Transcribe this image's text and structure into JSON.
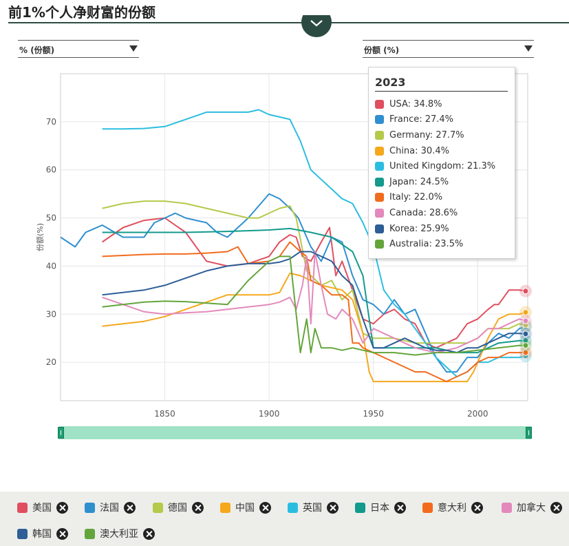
{
  "page": {
    "title": "前1%个人净财富的份额"
  },
  "controls": {
    "unit_select": "% (份额)",
    "metric_select": "份额 (%)"
  },
  "tooltip": {
    "year": "2023",
    "rows": [
      {
        "text": "USA: 34.8%",
        "color": "#e04f5f"
      },
      {
        "text": "France: 27.4%",
        "color": "#2f8fcf"
      },
      {
        "text": "Germany: 27.7%",
        "color": "#b5c94a"
      },
      {
        "text": "China: 30.4%",
        "color": "#f5a81c"
      },
      {
        "text": "United Kingdom: 21.3%",
        "color": "#2bbde0"
      },
      {
        "text": "Japan: 24.5%",
        "color": "#139a8c"
      },
      {
        "text": "Italy: 22.0%",
        "color": "#f26b1d"
      },
      {
        "text": "Canada: 28.6%",
        "color": "#e389bb"
      },
      {
        "text": "Korea: 25.9%",
        "color": "#2d5e96"
      },
      {
        "text": "Australia: 23.5%",
        "color": "#63a53a"
      }
    ]
  },
  "legend": [
    {
      "label": "美国",
      "color": "#e04f5f"
    },
    {
      "label": "法国",
      "color": "#2f8fcf"
    },
    {
      "label": "德国",
      "color": "#b5c94a"
    },
    {
      "label": "中国",
      "color": "#f5a81c"
    },
    {
      "label": "英国",
      "color": "#2bbde0"
    },
    {
      "label": "日本",
      "color": "#139a8c"
    },
    {
      "label": "意大利",
      "color": "#f26b1d"
    },
    {
      "label": "加拿大",
      "color": "#e389bb"
    },
    {
      "label": "韩国",
      "color": "#2d5e96"
    },
    {
      "label": "澳大利亚",
      "color": "#63a53a"
    }
  ],
  "chart_data": {
    "type": "line",
    "ylabel": "份额(%)",
    "xlim": [
      1800,
      2024
    ],
    "ylim": [
      12,
      80
    ],
    "xticks": [
      1850,
      1900,
      1950,
      2000
    ],
    "yticks": [
      20,
      30,
      40,
      50,
      60,
      70
    ],
    "grid": true,
    "series": [
      {
        "name": "USA",
        "color": "#e04f5f",
        "x": [
          1820,
          1830,
          1840,
          1850,
          1860,
          1870,
          1880,
          1890,
          1900,
          1905,
          1910,
          1913,
          1916,
          1920,
          1925,
          1929,
          1932,
          1935,
          1940,
          1945,
          1950,
          1955,
          1960,
          1965,
          1970,
          1975,
          1980,
          1985,
          1990,
          1995,
          2000,
          2005,
          2008,
          2010,
          2015,
          2020,
          2023
        ],
        "y": [
          45,
          48,
          49.5,
          50,
          47,
          41,
          40,
          40.5,
          42,
          45,
          46.5,
          46,
          42,
          41,
          45,
          48,
          38,
          41,
          35,
          29,
          28,
          30,
          31,
          29,
          28,
          24,
          23,
          24,
          25,
          28,
          29,
          31,
          32,
          32,
          35,
          35,
          34.8
        ]
      },
      {
        "name": "France",
        "color": "#2f8fcf",
        "x": [
          1800,
          1807,
          1812,
          1820,
          1830,
          1840,
          1845,
          1850,
          1855,
          1860,
          1870,
          1875,
          1880,
          1890,
          1900,
          1905,
          1910,
          1914,
          1920,
          1925,
          1930,
          1935,
          1940,
          1945,
          1950,
          1955,
          1960,
          1965,
          1970,
          1975,
          1980,
          1985,
          1990,
          1995,
          2000,
          2005,
          2010,
          2015,
          2020,
          2023
        ],
        "y": [
          46,
          44,
          47,
          48.5,
          46,
          46,
          49,
          50,
          51,
          50,
          49,
          47,
          46,
          50,
          55,
          54,
          52,
          50,
          44,
          41,
          46,
          45,
          38,
          33,
          32,
          30,
          33,
          30,
          31,
          26,
          21,
          18,
          18,
          21,
          21,
          24,
          26,
          25,
          27,
          27.4
        ]
      },
      {
        "name": "Germany",
        "color": "#b5c94a",
        "x": [
          1820,
          1830,
          1840,
          1850,
          1860,
          1870,
          1880,
          1890,
          1895,
          1900,
          1905,
          1910,
          1913,
          1918,
          1920,
          1925,
          1930,
          1935,
          1940,
          1945,
          1950,
          1960,
          1970,
          1975,
          1980,
          1990,
          1995,
          2000,
          2005,
          2010,
          2015,
          2020,
          2023
        ],
        "y": [
          52,
          53,
          53.5,
          53.5,
          53,
          52,
          51,
          50,
          50,
          51,
          52,
          52.5,
          50,
          39,
          38,
          36,
          37,
          33,
          35,
          26,
          25,
          25,
          24,
          24,
          24,
          24,
          24,
          25,
          27,
          27,
          27,
          28,
          27.7
        ]
      },
      {
        "name": "China",
        "color": "#f5a81c",
        "x": [
          1820,
          1830,
          1840,
          1850,
          1860,
          1870,
          1880,
          1890,
          1900,
          1905,
          1910,
          1915,
          1920,
          1925,
          1930,
          1935,
          1940,
          1945,
          1948,
          1950,
          1955,
          1960,
          1970,
          1978,
          1980,
          1990,
          1995,
          1998,
          2000,
          2005,
          2010,
          2015,
          2020,
          2023
        ],
        "y": [
          27.5,
          28,
          28.5,
          29.5,
          31,
          32.5,
          34,
          34,
          34,
          34.5,
          38.5,
          38,
          37,
          36,
          35.5,
          35,
          33,
          26,
          18,
          16,
          16,
          16,
          16,
          16,
          16,
          16,
          16,
          18,
          20,
          25,
          29,
          30,
          30,
          30.4
        ]
      },
      {
        "name": "United Kingdom",
        "color": "#2bbde0",
        "x": [
          1820,
          1830,
          1840,
          1850,
          1860,
          1870,
          1880,
          1890,
          1895,
          1900,
          1905,
          1910,
          1915,
          1920,
          1925,
          1930,
          1935,
          1940,
          1945,
          1950,
          1955,
          1960,
          1965,
          1970,
          1975,
          1980,
          1985,
          1990,
          1995,
          2000,
          2005,
          2010,
          2015,
          2020,
          2023
        ],
        "y": [
          68.5,
          68.5,
          68.6,
          69,
          70.5,
          72,
          72,
          72,
          72.5,
          71.5,
          71,
          70.5,
          66,
          60,
          58,
          56,
          54,
          53,
          49,
          44,
          35,
          32,
          30,
          27,
          24,
          21,
          19,
          17,
          18,
          20,
          20,
          21,
          21,
          21,
          21.3
        ]
      },
      {
        "name": "Japan",
        "color": "#139a8c",
        "x": [
          1820,
          1840,
          1860,
          1880,
          1900,
          1910,
          1920,
          1930,
          1940,
          1945,
          1950,
          1955,
          1960,
          1970,
          1980,
          1990,
          2000,
          2010,
          2020,
          2023
        ],
        "y": [
          47,
          47,
          47,
          47.2,
          47.5,
          47.8,
          47,
          46,
          43,
          38,
          23,
          23,
          23,
          23,
          23,
          22,
          22,
          24,
          24.5,
          24.5
        ]
      },
      {
        "name": "Italy",
        "color": "#f26b1d",
        "x": [
          1820,
          1830,
          1840,
          1850,
          1860,
          1870,
          1880,
          1885,
          1890,
          1900,
          1905,
          1910,
          1915,
          1918,
          1920,
          1925,
          1930,
          1935,
          1938,
          1940,
          1943,
          1945,
          1950,
          1955,
          1960,
          1970,
          1975,
          1980,
          1985,
          1990,
          1995,
          2000,
          2005,
          2010,
          2015,
          2020,
          2023
        ],
        "y": [
          42,
          42.2,
          42.4,
          42.5,
          42.5,
          42.7,
          43,
          44,
          40.5,
          41,
          42,
          45,
          43,
          42,
          37,
          36,
          34,
          34,
          33,
          24,
          24,
          23,
          22,
          21,
          20,
          18,
          18,
          17,
          16,
          17,
          18,
          20,
          21,
          21,
          22,
          22,
          22
        ]
      },
      {
        "name": "Canada",
        "color": "#e389bb",
        "x": [
          1820,
          1830,
          1840,
          1850,
          1860,
          1870,
          1880,
          1890,
          1900,
          1905,
          1910,
          1913,
          1916,
          1918,
          1920,
          1922,
          1925,
          1928,
          1932,
          1935,
          1940,
          1945,
          1950,
          1955,
          1960,
          1970,
          1980,
          1990,
          1995,
          2000,
          2005,
          2010,
          2015,
          2020,
          2023
        ],
        "y": [
          33.5,
          32,
          30.5,
          30,
          30.3,
          30.5,
          31,
          31.5,
          32,
          32.5,
          33.5,
          31,
          36,
          42,
          28,
          43,
          36,
          30,
          29,
          31,
          29,
          24,
          27,
          26,
          25,
          23,
          22,
          23,
          24,
          25,
          27,
          27,
          28,
          29,
          28.6
        ]
      },
      {
        "name": "Korea",
        "color": "#2d5e96",
        "x": [
          1820,
          1830,
          1840,
          1850,
          1860,
          1870,
          1880,
          1890,
          1900,
          1905,
          1910,
          1915,
          1920,
          1925,
          1930,
          1935,
          1940,
          1945,
          1950,
          1955,
          1960,
          1965,
          1970,
          1975,
          1980,
          1985,
          1990,
          1995,
          2000,
          2005,
          2010,
          2015,
          2020,
          2023
        ],
        "y": [
          34,
          34.5,
          35,
          36,
          37.5,
          39,
          40,
          40.5,
          40.5,
          40.8,
          41.5,
          43,
          43,
          42,
          41,
          38,
          36,
          29,
          23,
          23,
          24,
          25,
          24,
          23,
          22.5,
          22.5,
          22,
          23,
          23,
          24,
          25,
          26,
          26,
          25.9
        ]
      },
      {
        "name": "Australia",
        "color": "#63a53a",
        "x": [
          1820,
          1830,
          1840,
          1850,
          1860,
          1870,
          1880,
          1890,
          1900,
          1905,
          1910,
          1913,
          1915,
          1918,
          1920,
          1922,
          1925,
          1930,
          1935,
          1940,
          1945,
          1950,
          1960,
          1970,
          1980,
          1990,
          2000,
          2010,
          2020,
          2023
        ],
        "y": [
          31.5,
          32,
          32.5,
          32.7,
          32.6,
          32.3,
          32,
          37,
          41,
          42,
          42,
          30,
          22,
          29,
          22,
          27,
          23,
          23,
          22.5,
          23,
          22.5,
          22,
          22,
          21.5,
          22,
          22,
          22.5,
          23,
          23.5,
          23.5
        ]
      }
    ]
  }
}
